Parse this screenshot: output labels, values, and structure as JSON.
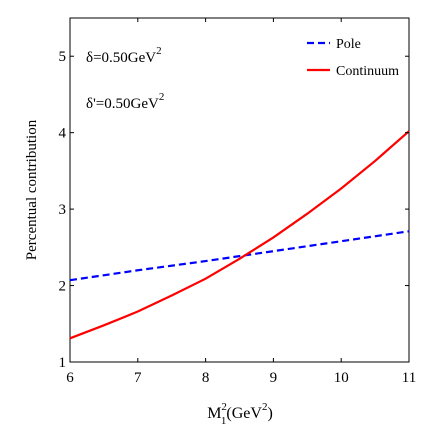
{
  "chart_data": {
    "type": "line",
    "xlim": [
      6,
      11
    ],
    "ylim": [
      1,
      5.5
    ],
    "x_ticks": [
      "6",
      "7",
      "8",
      "9",
      "10",
      "11"
    ],
    "y_ticks": [
      "1",
      "2",
      "3",
      "4",
      "5"
    ],
    "xlabel": {
      "main": "M",
      "sup": "2",
      "sub": "1",
      "tail": "(GeV",
      "sup2": "2",
      "close": ")"
    },
    "ylabel": "Percentual contribution",
    "grid": false,
    "annotations": [
      {
        "prefix": "δ=0.50GeV",
        "sup": "2"
      },
      {
        "prefix": "δ'=0.50GeV",
        "sup": "2"
      }
    ],
    "legend_position": "top-right",
    "series": [
      {
        "name": "Pole",
        "color": "#0000ff",
        "style": "dashed",
        "x": [
          6,
          7,
          8,
          9,
          10,
          11
        ],
        "y": [
          2.07,
          2.2,
          2.32,
          2.45,
          2.58,
          2.71
        ]
      },
      {
        "name": "Continuum",
        "color": "#ff0000",
        "style": "solid",
        "x": [
          6,
          6.5,
          7,
          7.5,
          8,
          8.5,
          9,
          9.5,
          10,
          10.5,
          11
        ],
        "y": [
          1.31,
          1.48,
          1.66,
          1.87,
          2.09,
          2.35,
          2.63,
          2.94,
          3.27,
          3.63,
          4.02
        ]
      }
    ]
  }
}
